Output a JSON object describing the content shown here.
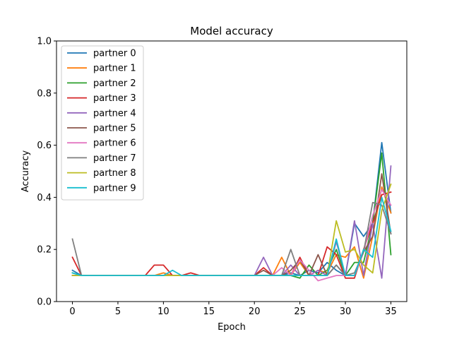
{
  "chart_data": {
    "type": "line",
    "title": "Model accuracy",
    "xlabel": "Epoch",
    "ylabel": "Accuracy",
    "xlim": [
      -1.75,
      36.75
    ],
    "ylim": [
      0,
      1
    ],
    "xticks": [
      0,
      5,
      10,
      15,
      20,
      25,
      30,
      35
    ],
    "yticks": [
      0.0,
      0.2,
      0.4,
      0.6,
      0.8,
      1.0
    ],
    "xtick_labels": [
      "0",
      "5",
      "10",
      "15",
      "20",
      "25",
      "30",
      "35"
    ],
    "ytick_labels": [
      "0.0",
      "0.2",
      "0.4",
      "0.6",
      "0.8",
      "1.0"
    ],
    "grid": false,
    "legend_position": "top-left",
    "x": [
      0,
      1,
      2,
      3,
      4,
      5,
      6,
      7,
      8,
      9,
      10,
      11,
      12,
      13,
      14,
      15,
      16,
      17,
      18,
      19,
      20,
      21,
      22,
      23,
      24,
      25,
      26,
      27,
      28,
      29,
      30,
      31,
      32,
      33,
      34,
      35
    ],
    "series": [
      {
        "name": "partner 0",
        "color": "#1f77b4",
        "values": [
          0.12,
          0.1,
          0.1,
          0.1,
          0.1,
          0.1,
          0.1,
          0.1,
          0.1,
          0.1,
          0.1,
          0.1,
          0.1,
          0.1,
          0.1,
          0.1,
          0.1,
          0.1,
          0.1,
          0.1,
          0.1,
          0.1,
          0.1,
          0.1,
          0.11,
          0.1,
          0.12,
          0.11,
          0.15,
          0.12,
          0.1,
          0.3,
          0.25,
          0.3,
          0.61,
          0.34
        ]
      },
      {
        "name": "partner 1",
        "color": "#ff7f0e",
        "values": [
          0.1,
          0.1,
          0.1,
          0.1,
          0.1,
          0.1,
          0.1,
          0.1,
          0.1,
          0.1,
          0.11,
          0.1,
          0.1,
          0.1,
          0.1,
          0.1,
          0.1,
          0.1,
          0.1,
          0.1,
          0.1,
          0.1,
          0.1,
          0.17,
          0.1,
          0.15,
          0.1,
          0.12,
          0.11,
          0.18,
          0.17,
          0.21,
          0.09,
          0.25,
          0.44,
          0.34
        ]
      },
      {
        "name": "partner 2",
        "color": "#2ca02c",
        "values": [
          0.11,
          0.1,
          0.1,
          0.1,
          0.1,
          0.1,
          0.1,
          0.1,
          0.1,
          0.1,
          0.1,
          0.1,
          0.1,
          0.1,
          0.1,
          0.1,
          0.1,
          0.1,
          0.1,
          0.1,
          0.1,
          0.1,
          0.1,
          0.1,
          0.1,
          0.09,
          0.14,
          0.1,
          0.12,
          0.2,
          0.1,
          0.15,
          0.15,
          0.3,
          0.57,
          0.18
        ]
      },
      {
        "name": "partner 3",
        "color": "#d62728",
        "values": [
          0.17,
          0.1,
          0.1,
          0.1,
          0.1,
          0.1,
          0.1,
          0.1,
          0.1,
          0.14,
          0.14,
          0.1,
          0.1,
          0.11,
          0.1,
          0.1,
          0.1,
          0.1,
          0.1,
          0.1,
          0.1,
          0.13,
          0.1,
          0.1,
          0.1,
          0.17,
          0.1,
          0.1,
          0.21,
          0.18,
          0.09,
          0.09,
          0.2,
          0.3,
          0.41,
          0.42
        ]
      },
      {
        "name": "partner 4",
        "color": "#9467bd",
        "values": [
          0.1,
          0.1,
          0.1,
          0.1,
          0.1,
          0.1,
          0.1,
          0.1,
          0.1,
          0.1,
          0.1,
          0.1,
          0.1,
          0.1,
          0.1,
          0.1,
          0.1,
          0.1,
          0.1,
          0.1,
          0.1,
          0.17,
          0.1,
          0.1,
          0.14,
          0.1,
          0.1,
          0.12,
          0.1,
          0.23,
          0.1,
          0.31,
          0.1,
          0.3,
          0.09,
          0.52
        ]
      },
      {
        "name": "partner 5",
        "color": "#8c564b",
        "values": [
          0.1,
          0.1,
          0.1,
          0.1,
          0.1,
          0.1,
          0.1,
          0.1,
          0.1,
          0.1,
          0.1,
          0.1,
          0.1,
          0.1,
          0.1,
          0.1,
          0.1,
          0.1,
          0.1,
          0.1,
          0.1,
          0.12,
          0.1,
          0.1,
          0.12,
          0.16,
          0.1,
          0.18,
          0.1,
          0.14,
          0.1,
          0.1,
          0.19,
          0.25,
          0.49,
          0.26
        ]
      },
      {
        "name": "partner 6",
        "color": "#e377c2",
        "values": [
          0.1,
          0.1,
          0.1,
          0.1,
          0.1,
          0.1,
          0.1,
          0.1,
          0.1,
          0.1,
          0.1,
          0.1,
          0.1,
          0.1,
          0.1,
          0.1,
          0.1,
          0.1,
          0.1,
          0.1,
          0.1,
          0.1,
          0.1,
          0.13,
          0.1,
          0.16,
          0.12,
          0.08,
          0.09,
          0.1,
          0.1,
          0.1,
          0.19,
          0.33,
          0.43,
          0.37
        ]
      },
      {
        "name": "partner 7",
        "color": "#7f7f7f",
        "values": [
          0.24,
          0.1,
          0.1,
          0.1,
          0.1,
          0.1,
          0.1,
          0.1,
          0.1,
          0.1,
          0.1,
          0.1,
          0.1,
          0.1,
          0.1,
          0.1,
          0.1,
          0.1,
          0.1,
          0.1,
          0.1,
          0.1,
          0.1,
          0.1,
          0.2,
          0.1,
          0.1,
          0.1,
          0.1,
          0.14,
          0.1,
          0.11,
          0.19,
          0.38,
          0.37,
          0.26
        ]
      },
      {
        "name": "partner 8",
        "color": "#bcbd22",
        "values": [
          0.1,
          0.1,
          0.1,
          0.1,
          0.1,
          0.1,
          0.1,
          0.1,
          0.1,
          0.1,
          0.1,
          0.1,
          0.1,
          0.1,
          0.1,
          0.1,
          0.1,
          0.1,
          0.1,
          0.1,
          0.1,
          0.1,
          0.1,
          0.1,
          0.1,
          0.1,
          0.1,
          0.1,
          0.1,
          0.31,
          0.19,
          0.2,
          0.14,
          0.11,
          0.35,
          0.45
        ]
      },
      {
        "name": "partner 9",
        "color": "#17becf",
        "values": [
          0.11,
          0.1,
          0.1,
          0.1,
          0.1,
          0.1,
          0.1,
          0.1,
          0.1,
          0.1,
          0.1,
          0.12,
          0.1,
          0.1,
          0.1,
          0.1,
          0.1,
          0.1,
          0.1,
          0.1,
          0.1,
          0.1,
          0.1,
          0.1,
          0.1,
          0.1,
          0.1,
          0.1,
          0.1,
          0.24,
          0.1,
          0.1,
          0.2,
          0.17,
          0.4,
          0.27
        ]
      }
    ]
  }
}
